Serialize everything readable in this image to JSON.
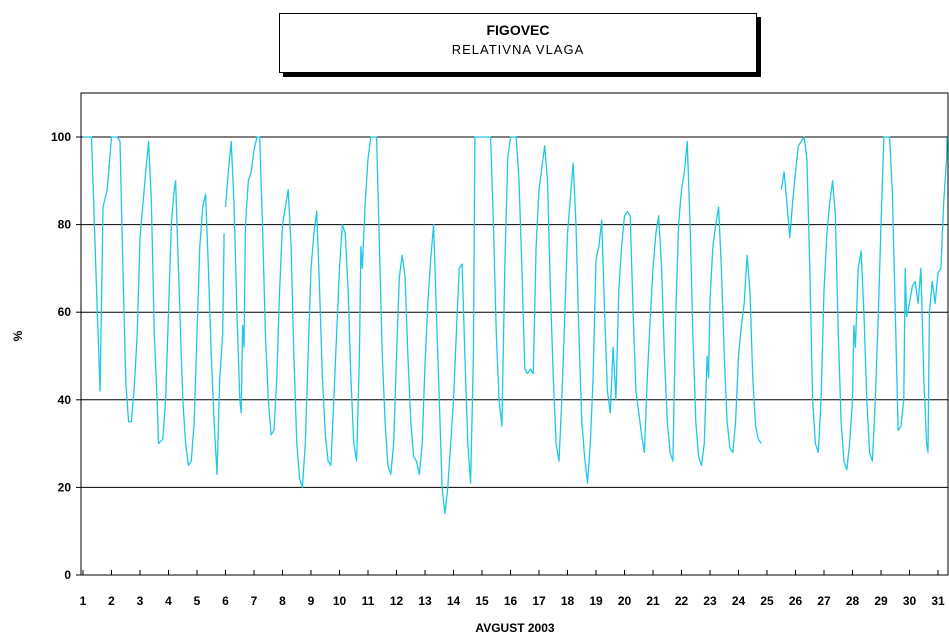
{
  "chart_data": {
    "type": "line",
    "title": "FIGOVEC",
    "subtitle": "RELATIVNA VLAGA",
    "xlabel": "AVGUST 2003",
    "ylabel": "%",
    "ylim": [
      0,
      100
    ],
    "y_ticks": [
      0,
      20,
      40,
      60,
      80,
      100
    ],
    "x_tick_labels": [
      "1",
      "2",
      "3",
      "4",
      "5",
      "6",
      "7",
      "8",
      "9",
      "10",
      "11",
      "12",
      "13",
      "14",
      "15",
      "16",
      "17",
      "18",
      "19",
      "20",
      "21",
      "22",
      "23",
      "24",
      "25",
      "26",
      "27",
      "28",
      "29",
      "30",
      "31"
    ],
    "grid": "horizontal",
    "line_color": "#1EC8E6",
    "series": [
      {
        "points": [
          [
            1.0,
            100
          ],
          [
            1.3,
            100
          ],
          [
            1.4,
            80
          ],
          [
            1.5,
            60
          ],
          [
            1.6,
            42
          ],
          [
            1.7,
            84
          ],
          [
            1.85,
            88
          ],
          [
            2.0,
            100
          ],
          [
            2.2,
            100
          ],
          [
            2.3,
            99
          ],
          [
            2.4,
            70
          ],
          [
            2.5,
            44
          ],
          [
            2.6,
            35
          ],
          [
            2.7,
            35
          ],
          [
            2.8,
            43
          ],
          [
            2.9,
            55
          ],
          [
            3.0,
            77
          ],
          [
            3.2,
            92
          ],
          [
            3.3,
            99
          ],
          [
            3.4,
            85
          ],
          [
            3.5,
            55
          ],
          [
            3.6,
            40
          ],
          [
            3.65,
            30
          ],
          [
            3.8,
            31
          ],
          [
            3.9,
            40
          ],
          [
            4.0,
            60
          ],
          [
            4.1,
            80
          ],
          [
            4.2,
            88
          ],
          [
            4.25,
            90
          ],
          [
            4.4,
            60
          ],
          [
            4.5,
            40
          ],
          [
            4.6,
            30
          ],
          [
            4.7,
            25
          ],
          [
            4.8,
            26
          ],
          [
            4.9,
            35
          ],
          [
            5.0,
            55
          ],
          [
            5.1,
            75
          ],
          [
            5.2,
            84
          ],
          [
            5.3,
            87
          ],
          [
            5.4,
            70
          ],
          [
            5.5,
            50
          ],
          [
            5.6,
            35
          ],
          [
            5.7,
            23
          ],
          [
            5.8,
            45
          ],
          [
            5.9,
            55
          ],
          [
            5.95,
            78
          ],
          null,
          [
            6.0,
            84
          ],
          [
            6.1,
            92
          ],
          [
            6.2,
            99
          ],
          [
            6.3,
            85
          ],
          [
            6.4,
            60
          ],
          [
            6.5,
            40
          ],
          [
            6.55,
            37
          ],
          [
            6.6,
            57
          ],
          [
            6.65,
            52
          ],
          [
            6.7,
            80
          ],
          [
            6.8,
            90
          ],
          [
            6.9,
            92
          ],
          [
            7.0,
            97
          ],
          [
            7.1,
            100
          ],
          [
            7.2,
            100
          ],
          [
            7.3,
            80
          ],
          [
            7.4,
            55
          ],
          [
            7.5,
            40
          ],
          [
            7.6,
            32
          ],
          [
            7.7,
            33
          ],
          [
            7.8,
            45
          ],
          [
            7.9,
            65
          ],
          [
            8.0,
            80
          ],
          [
            8.2,
            88
          ],
          [
            8.3,
            75
          ],
          [
            8.4,
            50
          ],
          [
            8.5,
            30
          ],
          [
            8.6,
            22
          ],
          [
            8.7,
            20
          ],
          [
            8.8,
            30
          ],
          [
            8.9,
            50
          ],
          [
            9.0,
            70
          ],
          [
            9.1,
            78
          ],
          [
            9.2,
            83
          ],
          [
            9.3,
            65
          ],
          [
            9.4,
            45
          ],
          [
            9.5,
            32
          ],
          [
            9.6,
            26
          ],
          [
            9.7,
            25
          ],
          [
            9.8,
            40
          ],
          [
            9.9,
            55
          ],
          [
            10.0,
            70
          ],
          [
            10.1,
            80
          ],
          [
            10.2,
            78
          ],
          [
            10.3,
            65
          ],
          [
            10.4,
            45
          ],
          [
            10.5,
            30
          ],
          [
            10.6,
            26
          ],
          [
            10.7,
            50
          ],
          [
            10.75,
            75
          ],
          [
            10.8,
            70
          ],
          [
            10.9,
            85
          ],
          [
            11.0,
            95
          ],
          [
            11.1,
            100
          ],
          [
            11.3,
            100
          ],
          [
            11.4,
            75
          ],
          [
            11.5,
            50
          ],
          [
            11.6,
            35
          ],
          [
            11.7,
            25
          ],
          [
            11.8,
            23
          ],
          [
            11.9,
            30
          ],
          [
            12.0,
            50
          ],
          [
            12.1,
            68
          ],
          [
            12.2,
            73
          ],
          [
            12.3,
            68
          ],
          [
            12.4,
            50
          ],
          [
            12.5,
            35
          ],
          [
            12.6,
            27
          ],
          [
            12.7,
            26
          ],
          [
            12.8,
            23
          ],
          [
            12.9,
            30
          ],
          [
            13.0,
            48
          ],
          [
            13.1,
            62
          ],
          [
            13.2,
            72
          ],
          [
            13.3,
            80
          ],
          [
            13.4,
            60
          ],
          [
            13.5,
            40
          ],
          [
            13.6,
            20
          ],
          [
            13.7,
            14
          ],
          [
            13.8,
            20
          ],
          [
            13.9,
            30
          ],
          [
            14.0,
            40
          ],
          [
            14.1,
            55
          ],
          [
            14.2,
            70
          ],
          [
            14.3,
            71
          ],
          [
            14.4,
            50
          ],
          [
            14.5,
            30
          ],
          [
            14.6,
            21
          ],
          [
            14.7,
            50
          ],
          [
            14.75,
            100
          ],
          [
            15.3,
            100
          ],
          [
            15.4,
            80
          ],
          [
            15.5,
            55
          ],
          [
            15.6,
            40
          ],
          [
            15.7,
            34
          ],
          [
            15.8,
            70
          ],
          [
            15.9,
            95
          ],
          [
            16.0,
            100
          ],
          [
            16.2,
            100
          ],
          [
            16.3,
            90
          ],
          [
            16.4,
            70
          ],
          [
            16.5,
            47
          ],
          [
            16.6,
            46
          ],
          [
            16.7,
            47
          ],
          [
            16.8,
            46
          ],
          [
            16.9,
            75
          ],
          [
            17.0,
            88
          ],
          [
            17.2,
            98
          ],
          [
            17.3,
            90
          ],
          [
            17.4,
            65
          ],
          [
            17.5,
            45
          ],
          [
            17.6,
            30
          ],
          [
            17.7,
            26
          ],
          [
            17.8,
            40
          ],
          [
            17.9,
            58
          ],
          [
            18.0,
            78
          ],
          [
            18.2,
            94
          ],
          [
            18.3,
            80
          ],
          [
            18.4,
            55
          ],
          [
            18.5,
            35
          ],
          [
            18.6,
            27
          ],
          [
            18.7,
            21
          ],
          [
            18.8,
            30
          ],
          [
            18.9,
            45
          ],
          [
            19.0,
            72
          ],
          [
            19.1,
            75
          ],
          [
            19.2,
            81
          ],
          [
            19.3,
            60
          ],
          [
            19.4,
            42
          ],
          [
            19.5,
            37
          ],
          [
            19.6,
            52
          ],
          [
            19.7,
            40
          ],
          [
            19.8,
            65
          ],
          [
            19.9,
            75
          ],
          [
            20.0,
            82
          ],
          [
            20.1,
            83
          ],
          [
            20.2,
            82
          ],
          [
            20.3,
            60
          ],
          [
            20.4,
            42
          ],
          [
            20.5,
            37
          ],
          [
            20.6,
            32
          ],
          [
            20.7,
            28
          ],
          [
            20.8,
            45
          ],
          [
            20.9,
            58
          ],
          [
            21.0,
            70
          ],
          [
            21.1,
            78
          ],
          [
            21.2,
            82
          ],
          [
            21.3,
            70
          ],
          [
            21.4,
            50
          ],
          [
            21.5,
            35
          ],
          [
            21.6,
            28
          ],
          [
            21.7,
            26
          ],
          [
            21.8,
            60
          ],
          [
            21.9,
            80
          ],
          [
            22.0,
            88
          ],
          [
            22.1,
            92
          ],
          [
            22.2,
            99
          ],
          [
            22.3,
            80
          ],
          [
            22.4,
            55
          ],
          [
            22.5,
            35
          ],
          [
            22.6,
            27
          ],
          [
            22.7,
            25
          ],
          [
            22.8,
            30
          ],
          [
            22.9,
            50
          ],
          [
            22.95,
            45
          ],
          [
            23.0,
            63
          ],
          [
            23.1,
            75
          ],
          [
            23.2,
            80
          ],
          [
            23.3,
            84
          ],
          [
            23.4,
            70
          ],
          [
            23.5,
            50
          ],
          [
            23.6,
            35
          ],
          [
            23.7,
            29
          ],
          [
            23.8,
            28
          ],
          [
            23.9,
            35
          ],
          [
            24.0,
            50
          ],
          [
            24.1,
            57
          ],
          [
            24.2,
            62
          ],
          [
            24.3,
            73
          ],
          [
            24.4,
            65
          ],
          [
            24.5,
            45
          ],
          [
            24.6,
            34
          ],
          [
            24.7,
            31
          ],
          [
            24.8,
            30
          ],
          null,
          [
            25.5,
            88
          ],
          [
            25.6,
            92
          ],
          [
            25.7,
            85
          ],
          [
            25.8,
            77
          ],
          [
            25.9,
            85
          ],
          [
            26.0,
            92
          ],
          [
            26.1,
            98
          ],
          [
            26.3,
            100
          ],
          [
            26.4,
            95
          ],
          [
            26.5,
            70
          ],
          [
            26.6,
            40
          ],
          [
            26.7,
            30
          ],
          [
            26.8,
            28
          ],
          [
            26.9,
            40
          ],
          [
            27.0,
            65
          ],
          [
            27.1,
            78
          ],
          [
            27.2,
            85
          ],
          [
            27.3,
            90
          ],
          [
            27.4,
            82
          ],
          [
            27.5,
            55
          ],
          [
            27.6,
            35
          ],
          [
            27.7,
            26
          ],
          [
            27.8,
            24
          ],
          [
            27.9,
            30
          ],
          [
            28.0,
            40
          ],
          [
            28.05,
            57
          ],
          [
            28.1,
            52
          ],
          [
            28.2,
            70
          ],
          [
            28.3,
            74
          ],
          [
            28.4,
            60
          ],
          [
            28.5,
            40
          ],
          [
            28.6,
            28
          ],
          [
            28.7,
            26
          ],
          [
            28.8,
            40
          ],
          [
            28.9,
            58
          ],
          [
            29.0,
            80
          ],
          [
            29.1,
            100
          ],
          [
            29.3,
            100
          ],
          [
            29.4,
            87
          ],
          [
            29.5,
            60
          ],
          [
            29.6,
            33
          ],
          [
            29.7,
            34
          ],
          [
            29.8,
            40
          ],
          [
            29.85,
            70
          ],
          [
            29.9,
            59
          ],
          [
            30.0,
            62
          ],
          [
            30.1,
            66
          ],
          [
            30.2,
            67
          ],
          [
            30.3,
            62
          ],
          [
            30.4,
            70
          ],
          [
            30.5,
            45
          ],
          [
            30.6,
            30
          ],
          [
            30.65,
            28
          ],
          [
            30.7,
            60
          ],
          [
            30.8,
            67
          ],
          [
            30.9,
            62
          ],
          [
            31.0,
            69
          ],
          [
            31.1,
            70
          ],
          [
            31.2,
            85
          ],
          [
            31.3,
            95
          ],
          [
            31.4,
            100
          ]
        ]
      }
    ]
  }
}
